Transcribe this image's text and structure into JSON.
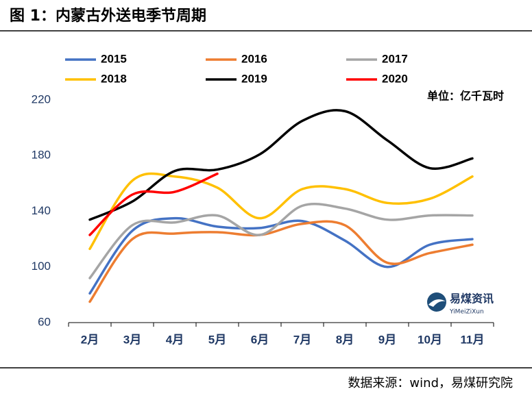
{
  "chart_data": {
    "type": "line",
    "title": "图 1：内蒙古外送电季节周期",
    "unit_label": "单位：亿千瓦时",
    "source": "数据来源：wind，易煤研究院",
    "logo": {
      "name": "易煤资讯",
      "subtitle": "YiMeiZiXun"
    },
    "categories": [
      "2月",
      "3月",
      "4月",
      "5月",
      "6月",
      "7月",
      "8月",
      "9月",
      "10月",
      "11月"
    ],
    "ylim": [
      60,
      220
    ],
    "yticks": [
      60,
      100,
      140,
      180,
      220
    ],
    "grid": false,
    "series": [
      {
        "name": "2015",
        "color": "#4472c4",
        "values": [
          81,
          126,
          135,
          129,
          128,
          133,
          119,
          100,
          116,
          120
        ]
      },
      {
        "name": "2016",
        "color": "#ed7d31",
        "values": [
          75,
          120,
          124,
          125,
          123,
          131,
          130,
          103,
          110,
          116
        ]
      },
      {
        "name": "2017",
        "color": "#a5a5a5",
        "values": [
          92,
          130,
          132,
          137,
          123,
          144,
          142,
          134,
          137,
          137
        ]
      },
      {
        "name": "2018",
        "color": "#ffc000",
        "values": [
          113,
          162,
          165,
          157,
          135,
          156,
          156,
          146,
          149,
          165
        ]
      },
      {
        "name": "2019",
        "color": "#000000",
        "values": [
          134,
          147,
          169,
          170,
          181,
          205,
          212,
          191,
          171,
          178
        ]
      },
      {
        "name": "2020",
        "color": "#ff0000",
        "values": [
          123,
          152,
          154,
          167,
          null,
          null,
          null,
          null,
          null,
          null
        ]
      }
    ]
  }
}
